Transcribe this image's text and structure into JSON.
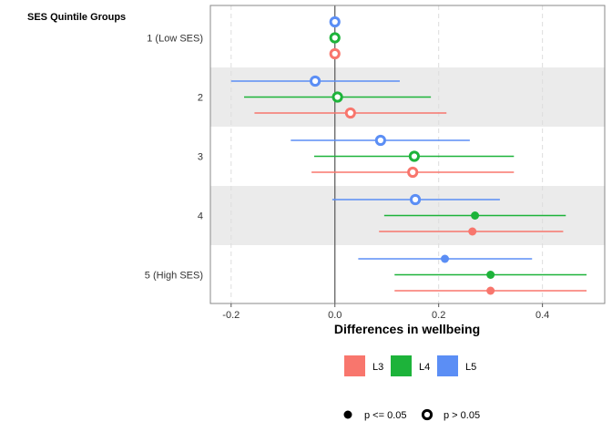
{
  "chart_data": {
    "type": "scatter",
    "subtype": "forest-plot",
    "y_title": "SES Quintile Groups",
    "xlabel": "Differences in wellbeing",
    "xlim": [
      -0.24,
      0.52
    ],
    "x_ticks": [
      -0.2,
      0.0,
      0.2,
      0.4
    ],
    "x_tick_labels": [
      "-0.2",
      "0.0",
      "0.2",
      "0.4"
    ],
    "reference_line": 0,
    "categories": [
      "1 (Low SES)",
      "2",
      "3",
      "4",
      "5 (High SES)"
    ],
    "grid": "vertical-dashed",
    "band_shading": "alternating",
    "legend_position": "bottom",
    "series": [
      {
        "name": "L3",
        "color": "#F8766D",
        "estimates": [
          0.0,
          0.03,
          0.15,
          0.265,
          0.3
        ],
        "ci_low": [
          0.0,
          -0.155,
          -0.045,
          0.085,
          0.115
        ],
        "ci_high": [
          0.0,
          0.215,
          0.345,
          0.44,
          0.485
        ],
        "significant": [
          false,
          false,
          false,
          true,
          true
        ]
      },
      {
        "name": "L4",
        "color": "#1DB33A",
        "estimates": [
          0.0,
          0.005,
          0.153,
          0.27,
          0.3
        ],
        "ci_low": [
          0.0,
          -0.175,
          -0.04,
          0.095,
          0.115
        ],
        "ci_high": [
          0.0,
          0.185,
          0.345,
          0.445,
          0.485
        ],
        "significant": [
          false,
          false,
          false,
          true,
          true
        ]
      },
      {
        "name": "L5",
        "color": "#5B8EF5",
        "estimates": [
          0.0,
          -0.038,
          0.088,
          0.155,
          0.212
        ],
        "ci_low": [
          0.0,
          -0.2,
          -0.085,
          -0.005,
          0.045
        ],
        "ci_high": [
          0.0,
          0.125,
          0.26,
          0.318,
          0.38
        ],
        "significant": [
          false,
          false,
          false,
          false,
          true
        ]
      }
    ],
    "shape_legend": [
      {
        "label": "p <= 0.05",
        "shape": "filled-circle"
      },
      {
        "label": "p > 0.05",
        "shape": "open-circle"
      }
    ]
  }
}
